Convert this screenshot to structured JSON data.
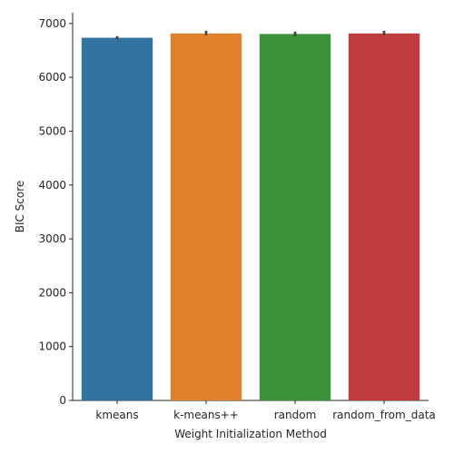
{
  "chart_data": {
    "type": "bar",
    "title": "",
    "xlabel": "Weight Initialization Method",
    "ylabel": "BIC Score",
    "categories": [
      "kmeans",
      "k-means++",
      "random",
      "random_from_data"
    ],
    "values": [
      6735,
      6815,
      6805,
      6815
    ],
    "error_bars": [
      [
        6705,
        6765
      ],
      [
        6780,
        6865
      ],
      [
        6765,
        6850
      ],
      [
        6780,
        6865
      ]
    ],
    "colors": [
      "#3274a1",
      "#e1812c",
      "#3a923a",
      "#c03d3e"
    ],
    "ylim": [
      0,
      7200
    ],
    "yticks": [
      0,
      1000,
      2000,
      3000,
      4000,
      5000,
      6000,
      7000
    ],
    "grid": false,
    "legend": "none"
  }
}
